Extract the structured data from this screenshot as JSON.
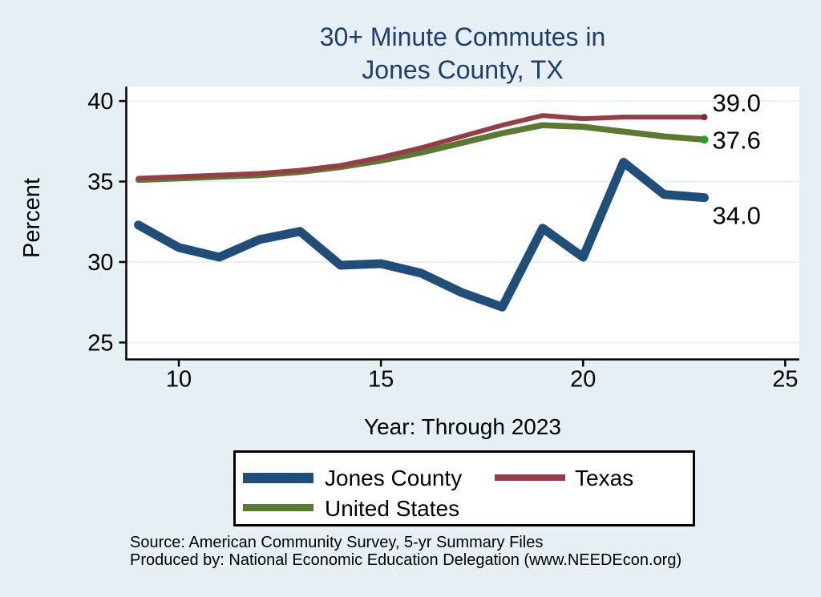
{
  "window": {
    "kind": "statistical line chart"
  },
  "colors": {
    "background": "#e5eff4",
    "plot_background": "#ffffff",
    "grid": "#e6f0f6",
    "axis": "#000000",
    "title": "#1f3e6d",
    "jones_county_line": "#1f4e79",
    "texas_line": "#963e46",
    "united_states_line": "#5a7a32",
    "us_end_dot": "#23a223",
    "texas_end_dot": "#7d2f38"
  },
  "header": {
    "title_line1": "30+ Minute Commutes in",
    "title_line2": "Jones County, TX"
  },
  "footer": {
    "source_line1": "Source: American Community Survey, 5-yr Summary Files",
    "source_line2": "Produced by: National Economic Education Delegation (www.NEEDEcon.org)"
  },
  "chart_data": {
    "type": "line",
    "title": "30+ Minute Commutes in Jones County, TX",
    "xlabel": "Year: Through 2023",
    "ylabel": "Percent",
    "grid": true,
    "legend_position": "bottom",
    "x": [
      9,
      10,
      11,
      12,
      13,
      14,
      15,
      16,
      17,
      18,
      19,
      20,
      21,
      22,
      23
    ],
    "x_ticks": [
      10,
      15,
      20,
      25
    ],
    "y_ticks": [
      25,
      30,
      35,
      40
    ],
    "xlim": [
      8.7,
      25.35
    ],
    "ylim": [
      23.95,
      40.9
    ],
    "series": [
      {
        "name": "Jones County",
        "color": "#1f4e79",
        "width": 11,
        "values": [
          32.3,
          30.9,
          30.3,
          31.4,
          31.9,
          29.8,
          29.9,
          29.3,
          28.1,
          27.2,
          32.1,
          30.3,
          36.2,
          34.2,
          34.0
        ],
        "end_label": "34.0",
        "end_label_dy": 33
      },
      {
        "name": "Texas",
        "color": "#963e46",
        "width": 6,
        "values": [
          35.2,
          35.3,
          35.4,
          35.5,
          35.7,
          36.0,
          36.5,
          37.1,
          37.8,
          38.5,
          39.1,
          38.9,
          39.0,
          39.0,
          39.0
        ],
        "end_label": "39.0",
        "end_label_dy": -7,
        "end_dot": "#7d2f38",
        "end_dot_r": 4
      },
      {
        "name": "United States",
        "color": "#5a7a32",
        "width": 7.5,
        "values": [
          35.1,
          35.2,
          35.3,
          35.4,
          35.6,
          35.9,
          36.3,
          36.8,
          37.4,
          38.0,
          38.5,
          38.4,
          38.1,
          37.8,
          37.6
        ],
        "end_label": "37.6",
        "end_label_dy": 11,
        "end_dot": "#23a223",
        "end_dot_r": 5
      }
    ]
  }
}
